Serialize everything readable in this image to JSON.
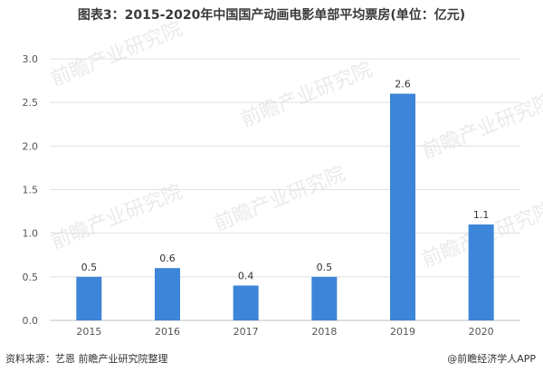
{
  "title": "图表3：2015-2020年中国国产动画电影单部平均票房(单位：亿元)",
  "source": "资料来源：艺恩 前瞻产业研究院整理",
  "brand": "@前瞻经济学人APP",
  "watermark": "前瞻产业研究院",
  "colors": {
    "bar": "#3d85d8",
    "grid": "#e0e0e0",
    "axis": "#bdbdbd"
  },
  "chart_data": {
    "type": "bar",
    "categories": [
      "2015",
      "2016",
      "2017",
      "2018",
      "2019",
      "2020"
    ],
    "values": [
      0.5,
      0.6,
      0.4,
      0.5,
      2.6,
      1.1
    ],
    "data_labels": [
      "0.5",
      "0.6",
      "0.4",
      "0.5",
      "2.6",
      "1.1"
    ],
    "yticks": [
      "0.0",
      "0.5",
      "1.0",
      "1.5",
      "2.0",
      "2.5",
      "3.0"
    ],
    "ylim": [
      0,
      3.0
    ],
    "grid": true,
    "legend": "none"
  }
}
